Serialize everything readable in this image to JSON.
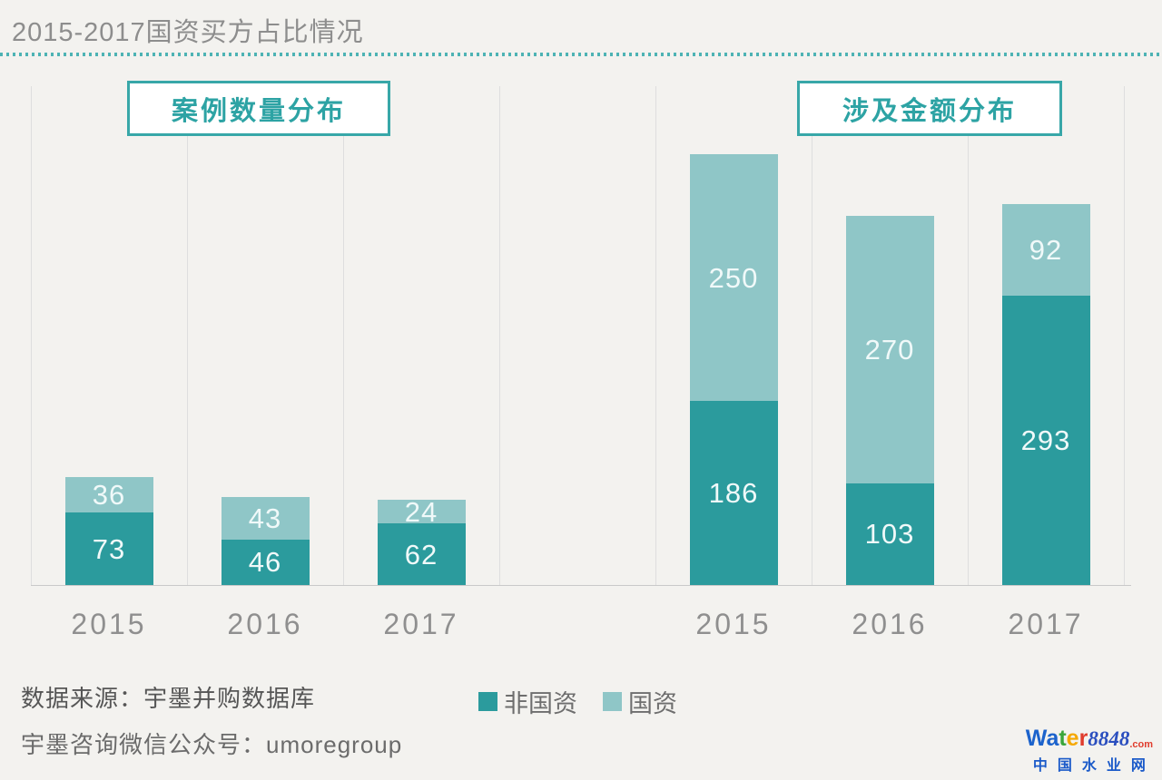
{
  "title": "2015-2017国资买方占比情况",
  "panels": {
    "cases": "案例数量分布",
    "amount": "涉及金额分布"
  },
  "legend": {
    "items": [
      {
        "label": "非国资",
        "color": "#2b9b9d"
      },
      {
        "label": "国资",
        "color": "#8fc6c7"
      }
    ]
  },
  "footer": {
    "source": "数据来源：宇墨并购数据库",
    "wechat": "宇墨咨询微信公众号：umoregroup"
  },
  "logo": {
    "letters": [
      {
        "ch": "W",
        "color": "#1c63cc"
      },
      {
        "ch": "a",
        "color": "#1c63cc"
      },
      {
        "ch": "t",
        "color": "#3aa53a"
      },
      {
        "ch": "e",
        "color": "#f5a800"
      },
      {
        "ch": "r",
        "color": "#e03c2d"
      }
    ],
    "number": "8848",
    "number_color": "#2b4fbf",
    "tld": ".com",
    "tld_color": "#e03c2d",
    "cn_name": "中国水业网",
    "cn_color": "#1b5ac9"
  },
  "colors": {
    "background": "#f3f2ef",
    "accent_teal": "#38a7a8",
    "dark_series": "#2b9b9d",
    "light_series": "#8fc6c7",
    "gridline": "#dedede",
    "axis_line": "#c9c9c9",
    "bar_value_text": "#f0f9f9",
    "tick_text": "#8f8f8f"
  },
  "chart_data": [
    {
      "type": "bar",
      "stacked": true,
      "title": "案例数量分布",
      "categories": [
        "2015",
        "2016",
        "2017"
      ],
      "series": [
        {
          "name": "非国资",
          "color": "#2b9b9d",
          "values": [
            73,
            46,
            62
          ]
        },
        {
          "name": "国资",
          "color": "#8fc6c7",
          "values": [
            36,
            43,
            24
          ]
        }
      ],
      "value_labels": true,
      "grid": "vertical-only",
      "legend_position": "bottom",
      "ylim": [
        0,
        500
      ],
      "col_start": 0
    },
    {
      "type": "bar",
      "stacked": true,
      "title": "涉及金额分布",
      "categories": [
        "2015",
        "2016",
        "2017"
      ],
      "series": [
        {
          "name": "非国资",
          "color": "#2b9b9d",
          "values": [
            186,
            103,
            293
          ]
        },
        {
          "name": "国资",
          "color": "#8fc6c7",
          "values": [
            250,
            270,
            92
          ]
        }
      ],
      "value_labels": true,
      "grid": "vertical-only",
      "legend_position": "bottom",
      "ylim": [
        0,
        500
      ],
      "col_start": 4
    }
  ]
}
